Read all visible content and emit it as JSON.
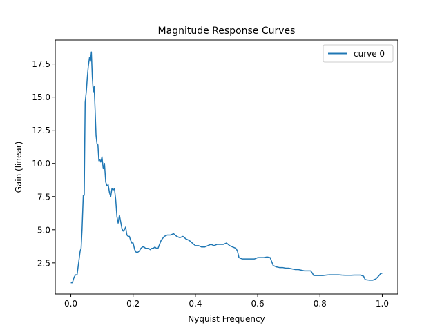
{
  "chart_data": {
    "type": "line",
    "title": "Magnitude Response Curves",
    "xlabel": "Nyquist Frequency",
    "ylabel": "Gain (linear)",
    "xlim": [
      -0.05,
      1.05
    ],
    "ylim": [
      0.15,
      19.3
    ],
    "xticks": [
      0.0,
      0.2,
      0.4,
      0.6,
      0.8,
      1.0
    ],
    "xtick_labels": [
      "0.0",
      "0.2",
      "0.4",
      "0.6",
      "0.8",
      "1.0"
    ],
    "yticks": [
      2.5,
      5.0,
      7.5,
      10.0,
      12.5,
      15.0,
      17.5
    ],
    "ytick_labels": [
      "2.5",
      "5.0",
      "7.5",
      "10.0",
      "12.5",
      "15.0",
      "17.5"
    ],
    "grid": false,
    "legend_position": "top-right",
    "colors": {
      "series": "#1f77b4"
    },
    "series": [
      {
        "name": "curve 0",
        "x": [
          0.0,
          0.005,
          0.01,
          0.015,
          0.02,
          0.025,
          0.03,
          0.033,
          0.036,
          0.04,
          0.043,
          0.046,
          0.05,
          0.053,
          0.056,
          0.06,
          0.063,
          0.066,
          0.069,
          0.072,
          0.075,
          0.078,
          0.081,
          0.084,
          0.087,
          0.09,
          0.093,
          0.096,
          0.1,
          0.104,
          0.108,
          0.112,
          0.116,
          0.12,
          0.124,
          0.128,
          0.132,
          0.136,
          0.14,
          0.144,
          0.148,
          0.152,
          0.156,
          0.16,
          0.164,
          0.168,
          0.172,
          0.176,
          0.18,
          0.184,
          0.188,
          0.192,
          0.196,
          0.2,
          0.205,
          0.21,
          0.215,
          0.22,
          0.225,
          0.23,
          0.235,
          0.24,
          0.245,
          0.25,
          0.255,
          0.26,
          0.265,
          0.27,
          0.275,
          0.28,
          0.29,
          0.3,
          0.31,
          0.32,
          0.33,
          0.34,
          0.35,
          0.36,
          0.37,
          0.38,
          0.39,
          0.4,
          0.41,
          0.42,
          0.43,
          0.44,
          0.45,
          0.46,
          0.47,
          0.48,
          0.49,
          0.5,
          0.51,
          0.52,
          0.53,
          0.535,
          0.54,
          0.55,
          0.56,
          0.57,
          0.58,
          0.59,
          0.6,
          0.61,
          0.62,
          0.63,
          0.64,
          0.645,
          0.65,
          0.66,
          0.67,
          0.68,
          0.69,
          0.7,
          0.71,
          0.72,
          0.73,
          0.74,
          0.75,
          0.76,
          0.77,
          0.775,
          0.78,
          0.79,
          0.8,
          0.81,
          0.82,
          0.83,
          0.84,
          0.85,
          0.86,
          0.87,
          0.88,
          0.89,
          0.9,
          0.91,
          0.92,
          0.93,
          0.94,
          0.945,
          0.95,
          0.96,
          0.97,
          0.98,
          0.99,
          0.995,
          1.0
        ],
        "y": [
          1.0,
          1.0,
          1.4,
          1.6,
          1.6,
          2.5,
          3.4,
          3.6,
          5.0,
          7.6,
          7.6,
          14.6,
          15.5,
          16.5,
          17.3,
          18.0,
          17.7,
          18.4,
          16.5,
          15.4,
          15.8,
          14.0,
          12.1,
          11.5,
          11.4,
          10.2,
          10.3,
          10.1,
          10.5,
          9.6,
          10.0,
          8.6,
          8.3,
          8.4,
          7.8,
          7.5,
          8.1,
          8.0,
          8.1,
          7.3,
          6.0,
          5.5,
          6.1,
          5.6,
          5.1,
          4.9,
          5.0,
          5.2,
          4.6,
          4.5,
          4.5,
          4.2,
          4.0,
          4.0,
          3.5,
          3.3,
          3.3,
          3.4,
          3.6,
          3.7,
          3.7,
          3.6,
          3.6,
          3.6,
          3.5,
          3.6,
          3.6,
          3.7,
          3.6,
          3.6,
          4.2,
          4.5,
          4.6,
          4.6,
          4.7,
          4.5,
          4.4,
          4.5,
          4.3,
          4.2,
          4.0,
          3.8,
          3.8,
          3.7,
          3.7,
          3.8,
          3.9,
          3.8,
          3.9,
          3.9,
          3.9,
          4.0,
          3.8,
          3.7,
          3.6,
          3.4,
          2.9,
          2.8,
          2.8,
          2.8,
          2.8,
          2.8,
          2.9,
          2.9,
          2.9,
          2.95,
          2.9,
          2.6,
          2.3,
          2.2,
          2.15,
          2.15,
          2.1,
          2.1,
          2.05,
          2.0,
          2.0,
          1.95,
          1.9,
          1.9,
          1.9,
          1.75,
          1.55,
          1.55,
          1.55,
          1.55,
          1.58,
          1.6,
          1.6,
          1.6,
          1.6,
          1.58,
          1.57,
          1.57,
          1.57,
          1.58,
          1.58,
          1.58,
          1.5,
          1.25,
          1.22,
          1.2,
          1.2,
          1.3,
          1.55,
          1.7,
          1.72
        ]
      }
    ]
  }
}
